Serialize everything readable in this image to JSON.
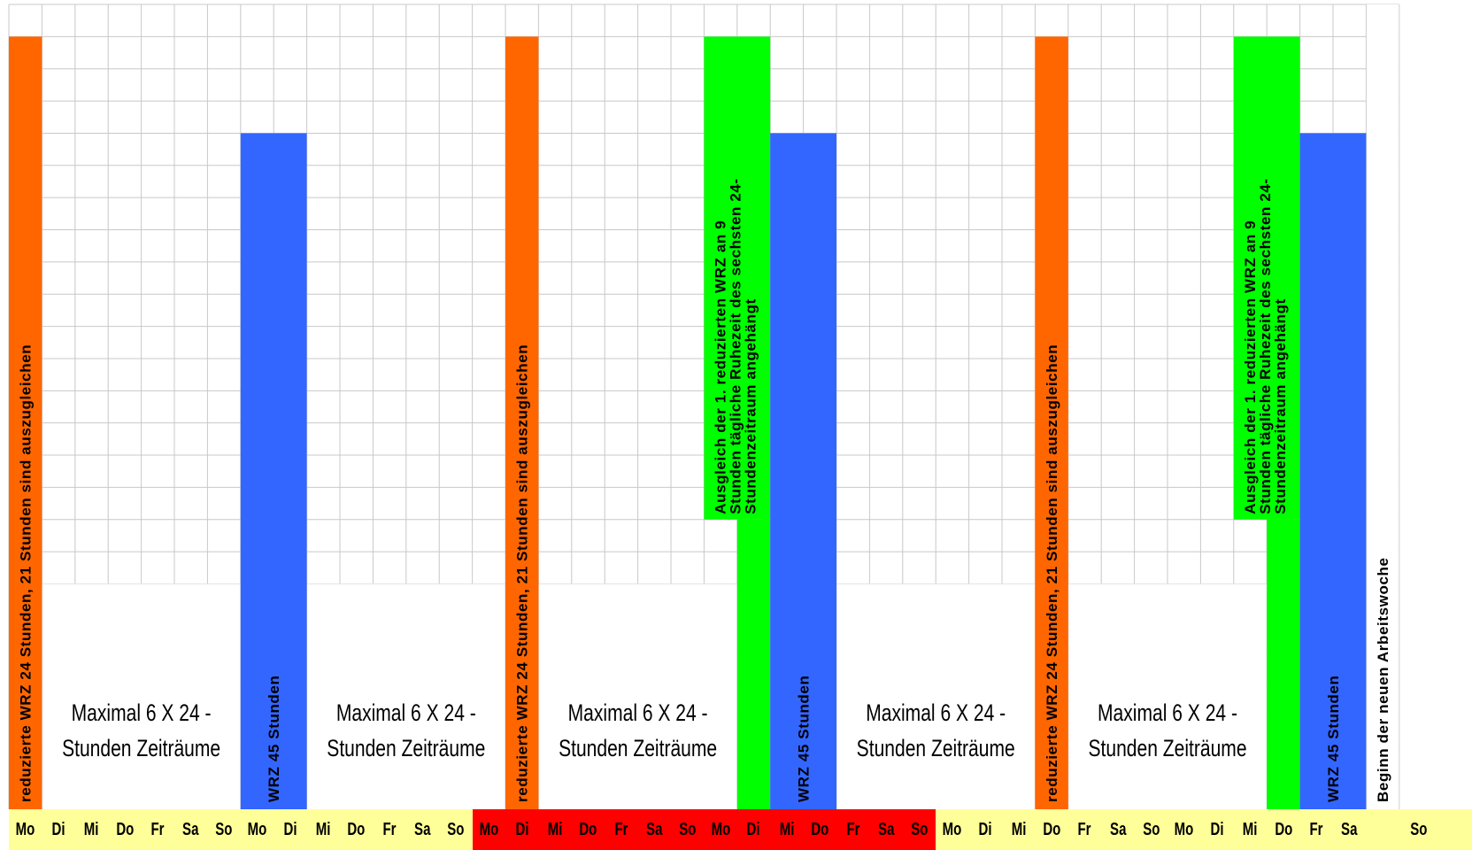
{
  "chart_data": {
    "type": "bar",
    "title": "",
    "xlabel": "",
    "ylabel": "",
    "grid": true,
    "legend": "none",
    "ylim": [
      0,
      24
    ],
    "days": [
      "Mo",
      "Di",
      "Mi",
      "Do",
      "Fr",
      "Sa",
      "So",
      "Mo",
      "Di",
      "Mi",
      "Do",
      "Fr",
      "Sa",
      "So",
      "Mo",
      "Di",
      "Mi",
      "Do",
      "Fr",
      "Sa",
      "So",
      "Mo",
      "Di",
      "Mi",
      "Do",
      "Fr",
      "Sa",
      "So",
      "Mo",
      "Di",
      "Mi",
      "Do",
      "Fr",
      "Sa",
      "So",
      "Mo",
      "Di",
      "Mi",
      "Do",
      "Fr",
      "Sa",
      "So"
    ],
    "day_colors": [
      "#ffff99",
      "#ffff99",
      "#ffff99",
      "#ffff99",
      "#ffff99",
      "#ffff99",
      "#ffff99",
      "#ffff99",
      "#ffff99",
      "#ffff99",
      "#ffff99",
      "#ffff99",
      "#ffff99",
      "#ffff99",
      "#ff0000",
      "#ff0000",
      "#ff0000",
      "#ff0000",
      "#ff0000",
      "#ff0000",
      "#ff0000",
      "#ff0000",
      "#ff0000",
      "#ff0000",
      "#ff0000",
      "#ff0000",
      "#ff0000",
      "#ff0000",
      "#ffff99",
      "#ffff99",
      "#ffff99",
      "#ffff99",
      "#ffff99",
      "#ffff99",
      "#ffff99",
      "#ffff99",
      "#ffff99",
      "#ffff99",
      "#ffff99",
      "#ffff99",
      "#ffff99",
      "#ffff99"
    ],
    "bars": [
      {
        "kind": "reduced",
        "start": 0,
        "width": 1,
        "value": 24,
        "color": "#ff6600",
        "label_lines": [
          "reduzierte WRZ  24 Stunden, 21 Stunden sind auszugleichen"
        ]
      },
      {
        "kind": "weekly",
        "start": 7,
        "width": 2,
        "value": 21,
        "color": "#3366ff",
        "label_lines": [
          "WRZ 45 Stunden"
        ]
      },
      {
        "kind": "reduced",
        "start": 15,
        "width": 1,
        "value": 24,
        "color": "#ff6600",
        "label_lines": [
          "reduzierte WRZ  24 Stunden, 21 Stunden sind auszugleichen"
        ]
      },
      {
        "kind": "compensation",
        "start": 21,
        "width": 2,
        "value": 24,
        "base": 9,
        "color": "#00ff00",
        "label_lines": [
          "Ausgleich der 1. reduzierten WRZ an 9",
          "Stunden tägliche Ruhezeit des sechsten 24-",
          "Stundenzeitraum angehängt"
        ]
      },
      {
        "kind": "weekly",
        "start": 23,
        "width": 2,
        "value": 21,
        "color": "#3366ff",
        "label_lines": [
          "WRZ 45 Stunden"
        ]
      },
      {
        "kind": "reduced",
        "start": 31,
        "width": 1,
        "value": 24,
        "color": "#ff6600",
        "label_lines": [
          "reduzierte WRZ  24 Stunden, 21 Stunden sind auszugleichen"
        ]
      },
      {
        "kind": "compensation",
        "start": 37,
        "width": 2,
        "value": 24,
        "base": 9,
        "color": "#00ff00",
        "label_lines": [
          "Ausgleich der 1. reduzierten WRZ an 9",
          "Stunden tägliche Ruhezeit des sechsten 24-",
          "Stundenzeitraum angehängt"
        ]
      },
      {
        "kind": "weekly",
        "start": 39,
        "width": 2,
        "value": 21,
        "color": "#3366ff",
        "label_lines": [
          "WRZ 45 Stunden"
        ]
      },
      {
        "kind": "marker",
        "start": 41,
        "width": 1,
        "value": 0,
        "color": "#ffffff",
        "label_lines": [
          "Beginn der neuen Arbeitswoche"
        ]
      }
    ],
    "annotations": [
      {
        "start": 1,
        "width": 6,
        "lines": [
          "Maximal 6 X   24 -",
          "Stunden Zeiträume"
        ]
      },
      {
        "start": 9,
        "width": 6,
        "lines": [
          "Maximal 6 X   24 -",
          "Stunden Zeiträume"
        ]
      },
      {
        "start": 16,
        "width": 6,
        "lines": [
          "Maximal 6 X   24 -",
          "Stunden Zeiträume"
        ]
      },
      {
        "start": 25,
        "width": 6,
        "lines": [
          "Maximal 6 X   24 -",
          "Stunden Zeiträume"
        ]
      },
      {
        "start": 32,
        "width": 6,
        "lines": [
          "Maximal 6 X   24 -",
          "Stunden Zeiträume"
        ]
      }
    ]
  }
}
